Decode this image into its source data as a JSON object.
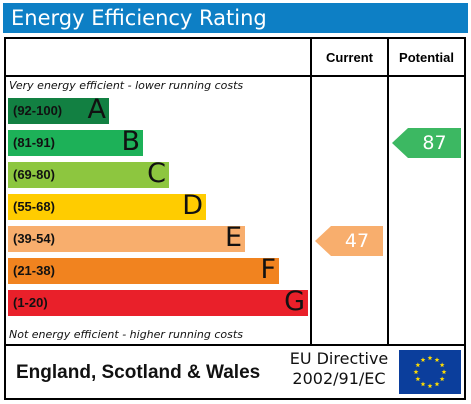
{
  "header": {
    "title": "Energy Efficiency Rating"
  },
  "columns": {
    "current": "Current",
    "potential": "Potential"
  },
  "captions": {
    "top": "Very energy efficient - lower running costs",
    "bottom": "Not energy efficient - higher running costs"
  },
  "bands": [
    {
      "range": "(92-100)",
      "letter": "A",
      "color": "#128042"
    },
    {
      "range": "(81-91)",
      "letter": "B",
      "color": "#1db158"
    },
    {
      "range": "(69-80)",
      "letter": "C",
      "color": "#8dc63f"
    },
    {
      "range": "(55-68)",
      "letter": "D",
      "color": "#ffcc00"
    },
    {
      "range": "(39-54)",
      "letter": "E",
      "color": "#f8ae6d"
    },
    {
      "range": "(21-38)",
      "letter": "F",
      "color": "#f1831f"
    },
    {
      "range": "(1-20)",
      "letter": "G",
      "color": "#e9202a"
    }
  ],
  "ratings": {
    "current": {
      "value": "47",
      "color": "#f8ae6d"
    },
    "potential": {
      "value": "87",
      "color": "#3cb862"
    }
  },
  "footer": {
    "region": "England, Scotland & Wales",
    "directive_line1": "EU Directive",
    "directive_line2": "2002/91/EC",
    "flag_icon": "eu-flag-icon"
  }
}
